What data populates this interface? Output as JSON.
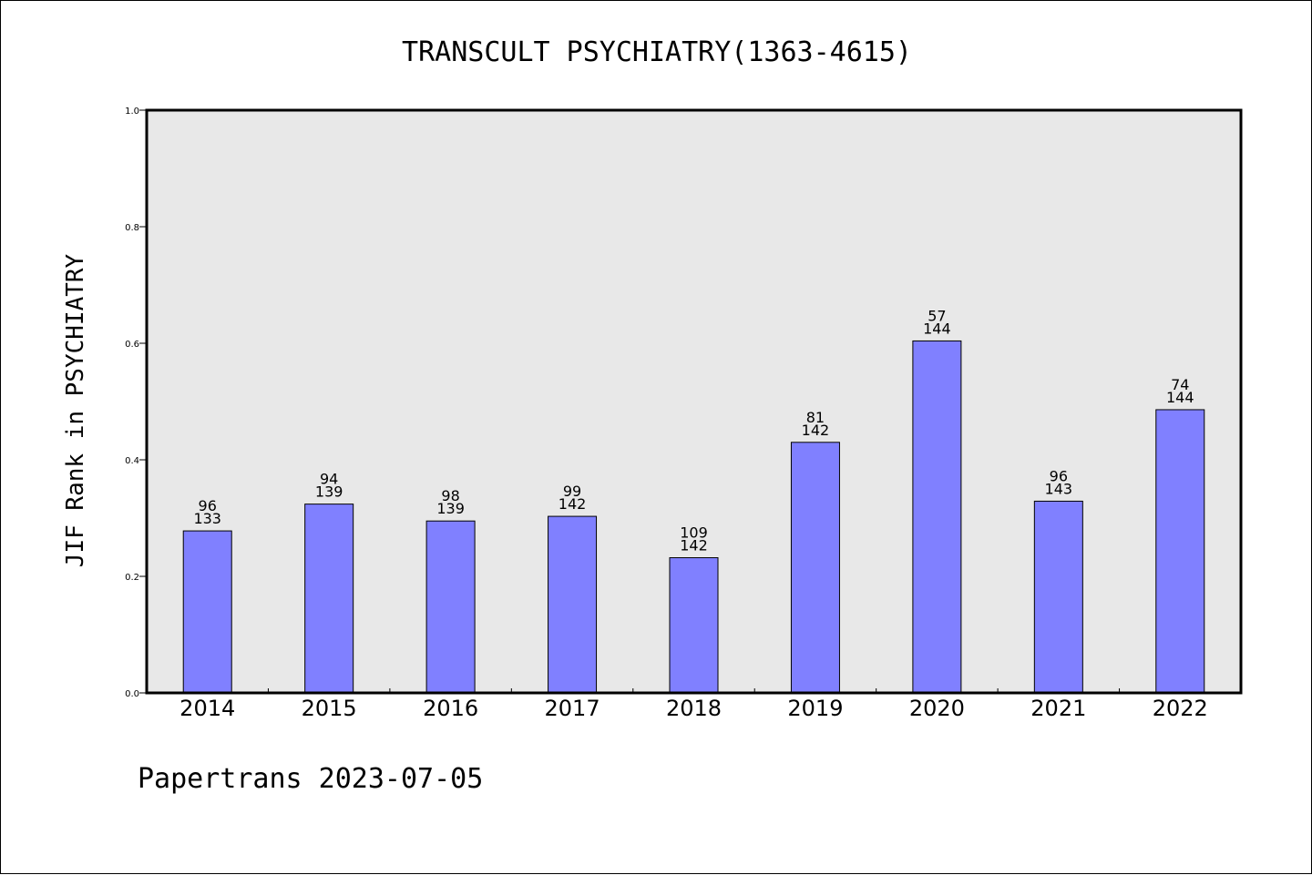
{
  "chart_data": {
    "type": "bar",
    "title": "TRANSCULT PSYCHIATRY(1363-4615)",
    "ylabel": "JIF Rank in PSYCHIATRY",
    "xlabel": "",
    "categories": [
      "2014",
      "2015",
      "2016",
      "2017",
      "2018",
      "2019",
      "2020",
      "2021",
      "2022"
    ],
    "values": [
      0.278,
      0.324,
      0.295,
      0.303,
      0.232,
      0.43,
      0.604,
      0.329,
      0.486
    ],
    "rank_labels": [
      "96",
      "94",
      "98",
      "99",
      "109",
      "81",
      "57",
      "96",
      "74"
    ],
    "total_labels": [
      "133",
      "139",
      "139",
      "142",
      "142",
      "142",
      "144",
      "143",
      "144"
    ],
    "ylim": [
      0.0,
      1.0
    ],
    "yticks": [
      "0.0",
      "0.2",
      "0.4",
      "0.6",
      "0.8",
      "1.0"
    ],
    "grid": false,
    "legend": "none",
    "colors": {
      "bar": "#8080ff",
      "plot_background": "#e8e8e8",
      "axis": "#000000"
    }
  },
  "footer": {
    "text": "Papertrans 2023-07-05"
  }
}
